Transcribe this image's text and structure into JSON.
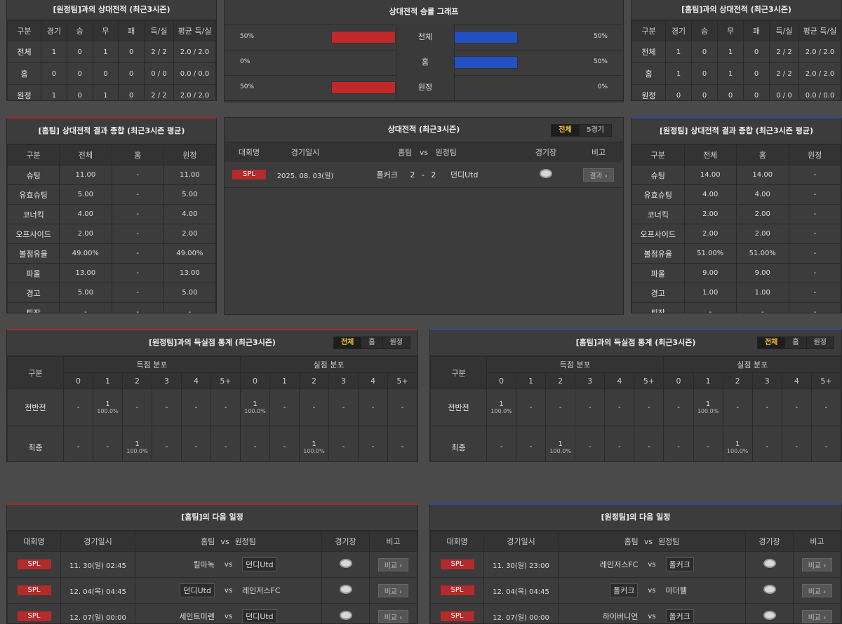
{
  "h2h_home": {
    "title": "[원정팀]과의 상대전적 (최근3시즌)",
    "headers": [
      "구분",
      "경기",
      "승",
      "무",
      "패",
      "득/실",
      "평균 득/실"
    ],
    "rows": [
      [
        "전체",
        "1",
        "0",
        "1",
        "0",
        "2 / 2",
        "2.0 / 2.0"
      ],
      [
        "홈",
        "0",
        "0",
        "0",
        "0",
        "0 / 0",
        "0.0 / 0.0"
      ],
      [
        "원정",
        "1",
        "0",
        "1",
        "0",
        "2 / 2",
        "2.0 / 2.0"
      ]
    ]
  },
  "h2h_away": {
    "title": "[홈팀]과의 상대전적 (최근3시즌)",
    "headers": [
      "구분",
      "경기",
      "승",
      "무",
      "패",
      "득/실",
      "평균 득/실"
    ],
    "rows": [
      [
        "전체",
        "1",
        "0",
        "1",
        "0",
        "2 / 2",
        "2.0 / 2.0"
      ],
      [
        "홈",
        "1",
        "0",
        "1",
        "0",
        "2 / 2",
        "2.0 / 2.0"
      ],
      [
        "원정",
        "0",
        "0",
        "0",
        "0",
        "0 / 0",
        "0.0 / 0.0"
      ]
    ]
  },
  "graph": {
    "title": "상대전적 승률 그래프",
    "rows": [
      {
        "label": "전체",
        "left": "50%",
        "right": "50%",
        "left_val": 0.5,
        "right_val": 0.5
      },
      {
        "label": "홈",
        "left": "0%",
        "right": "50%",
        "left_val": 0,
        "right_val": 0.5
      },
      {
        "label": "원정",
        "left": "50%",
        "right": "0%",
        "left_val": 0.5,
        "right_val": 0
      }
    ]
  },
  "summary_home": {
    "title": "[홈팀] 상대전적 결과 종합 (최근3시즌 평균)",
    "headers": [
      "구분",
      "전체",
      "홈",
      "원정"
    ],
    "rows": [
      [
        "슈팅",
        "11.00",
        "-",
        "11.00"
      ],
      [
        "유효슈팅",
        "5.00",
        "-",
        "5.00"
      ],
      [
        "코너킥",
        "4.00",
        "-",
        "4.00"
      ],
      [
        "오프사이드",
        "2.00",
        "-",
        "2.00"
      ],
      [
        "볼점유율",
        "49.00%",
        "-",
        "49.00%"
      ],
      [
        "파울",
        "13.00",
        "-",
        "13.00"
      ],
      [
        "경고",
        "5.00",
        "-",
        "5.00"
      ],
      [
        "퇴장",
        "-",
        "-",
        "-"
      ]
    ]
  },
  "summary_away": {
    "title": "[원정팀] 상대전적 결과 종합 (최근3시즌 평균)",
    "headers": [
      "구분",
      "전체",
      "홈",
      "원정"
    ],
    "rows": [
      [
        "슈팅",
        "14.00",
        "14.00",
        "-"
      ],
      [
        "유효슈팅",
        "4.00",
        "4.00",
        "-"
      ],
      [
        "코너킥",
        "2.00",
        "2.00",
        "-"
      ],
      [
        "오프사이드",
        "2.00",
        "2.00",
        "-"
      ],
      [
        "볼점유율",
        "51.00%",
        "51.00%",
        "-"
      ],
      [
        "파울",
        "9.00",
        "9.00",
        "-"
      ],
      [
        "경고",
        "1.00",
        "1.00",
        "-"
      ],
      [
        "퇴장",
        "-",
        "-",
        "-"
      ]
    ]
  },
  "h2h_list": {
    "title": "상대전적 (최근3시즌)",
    "toggle": [
      "전체",
      "5경기"
    ],
    "headers": {
      "league": "대회명",
      "date": "경기일시",
      "home": "홈팀",
      "vs": "vs",
      "away": "원정팀",
      "stadium": "경기장",
      "note": "비고"
    },
    "rows": [
      {
        "league": "SPL",
        "date": "2025. 08. 03(일)",
        "home": "폴커크",
        "score": "2 - 2",
        "away": "던디Utd",
        "btn": "결과"
      }
    ]
  },
  "goals_home": {
    "title": "[원정팀]과의 득실점 통계 (최근3시즌)",
    "toggle": [
      "전체",
      "홈",
      "원정"
    ],
    "col_label": "구분",
    "group1": "득점 분포",
    "group2": "실점 분포",
    "buckets": [
      "0",
      "1",
      "2",
      "3",
      "4",
      "5+"
    ],
    "rows": [
      {
        "label": "전반전",
        "cells": [
          [
            "-",
            ""
          ],
          [
            "1",
            "100.0%"
          ],
          [
            "-",
            ""
          ],
          [
            "-",
            ""
          ],
          [
            "-",
            ""
          ],
          [
            "-",
            ""
          ],
          [
            "1",
            "100.0%"
          ],
          [
            "-",
            ""
          ],
          [
            "-",
            ""
          ],
          [
            "-",
            ""
          ],
          [
            "-",
            ""
          ],
          [
            "-",
            ""
          ]
        ]
      },
      {
        "label": "최종",
        "cells": [
          [
            "-",
            ""
          ],
          [
            "-",
            ""
          ],
          [
            "1",
            "100.0%"
          ],
          [
            "-",
            ""
          ],
          [
            "-",
            ""
          ],
          [
            "-",
            ""
          ],
          [
            "-",
            ""
          ],
          [
            "-",
            ""
          ],
          [
            "1",
            "100.0%"
          ],
          [
            "-",
            ""
          ],
          [
            "-",
            ""
          ],
          [
            "-",
            ""
          ]
        ]
      }
    ]
  },
  "goals_away": {
    "title": "[홈팀]과의 득실점 통계 (최근3시즌)",
    "toggle": [
      "전체",
      "홈",
      "원정"
    ],
    "col_label": "구분",
    "group1": "득점 분포",
    "group2": "실점 분포",
    "buckets": [
      "0",
      "1",
      "2",
      "3",
      "4",
      "5+"
    ],
    "rows": [
      {
        "label": "전반전",
        "cells": [
          [
            "1",
            "100.0%"
          ],
          [
            "-",
            ""
          ],
          [
            "-",
            ""
          ],
          [
            "-",
            ""
          ],
          [
            "-",
            ""
          ],
          [
            "-",
            ""
          ],
          [
            "-",
            ""
          ],
          [
            "1",
            "100.0%"
          ],
          [
            "-",
            ""
          ],
          [
            "-",
            ""
          ],
          [
            "-",
            ""
          ],
          [
            "-",
            ""
          ]
        ]
      },
      {
        "label": "최종",
        "cells": [
          [
            "-",
            ""
          ],
          [
            "-",
            ""
          ],
          [
            "1",
            "100.0%"
          ],
          [
            "-",
            ""
          ],
          [
            "-",
            ""
          ],
          [
            "-",
            ""
          ],
          [
            "-",
            ""
          ],
          [
            "-",
            ""
          ],
          [
            "1",
            "100.0%"
          ],
          [
            "-",
            ""
          ],
          [
            "-",
            ""
          ],
          [
            "-",
            ""
          ]
        ]
      }
    ]
  },
  "next_home": {
    "title": "[홈팀]의 다음 일정",
    "headers": {
      "league": "대회명",
      "date": "경기일시",
      "home": "홈팀",
      "vs": "vs",
      "away": "원정팀",
      "stadium": "경기장",
      "note": "비고"
    },
    "rows": [
      {
        "league": "SPL",
        "date": "11. 30(일) 02:45",
        "home": "킬마녹",
        "away": "던디Utd",
        "hl": "away",
        "btn": "비교"
      },
      {
        "league": "SPL",
        "date": "12. 04(목) 04:45",
        "home": "던디Utd",
        "away": "레인저스FC",
        "hl": "home",
        "btn": "비교"
      },
      {
        "league": "SPL",
        "date": "12. 07(일) 00:00",
        "home": "세인트미렌",
        "away": "던디Utd",
        "hl": "away",
        "btn": "비교"
      }
    ]
  },
  "next_away": {
    "title": "[원정팀]의 다음 일정",
    "headers": {
      "league": "대회명",
      "date": "경기일시",
      "home": "홈팀",
      "vs": "vs",
      "away": "원정팀",
      "stadium": "경기장",
      "note": "비고"
    },
    "rows": [
      {
        "league": "SPL",
        "date": "11. 30(일) 23:00",
        "home": "레인저스FC",
        "away": "폴커크",
        "hl": "away",
        "btn": "비교"
      },
      {
        "league": "SPL",
        "date": "12. 04(목) 04:45",
        "home": "폴커크",
        "away": "마더웰",
        "hl": "home",
        "btn": "비교"
      },
      {
        "league": "SPL",
        "date": "12. 07(일) 00:00",
        "home": "하이버니언",
        "away": "폴커크",
        "hl": "away",
        "btn": "비교"
      }
    ]
  }
}
